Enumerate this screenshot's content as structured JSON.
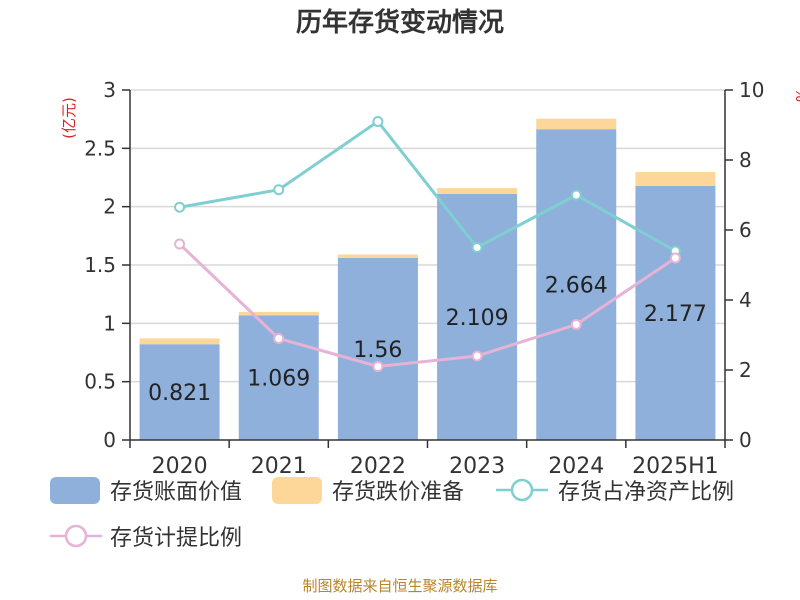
{
  "chart_data": {
    "type": "bar",
    "title": "历年存货变动情况",
    "categories": [
      "2020",
      "2021",
      "2022",
      "2023",
      "2024",
      "2025H1"
    ],
    "left_axis": {
      "unit": "(亿元)",
      "ylim": [
        0,
        3
      ],
      "ticks": [
        "0",
        "0.5",
        "1",
        "1.5",
        "2",
        "2.5",
        "3"
      ]
    },
    "right_axis": {
      "unit": "%",
      "ylim": [
        0,
        10
      ],
      "ticks": [
        "0",
        "2",
        "4",
        "6",
        "8",
        "10"
      ]
    },
    "series": [
      {
        "name": "存货账面价值",
        "kind": "bar",
        "axis": "left",
        "color": "#8eb0db",
        "values": [
          0.821,
          1.069,
          1.56,
          2.109,
          2.664,
          2.177
        ],
        "labels": [
          "0.821",
          "1.069",
          "1.56",
          "2.109",
          "2.664",
          "2.177"
        ]
      },
      {
        "name": "存货跌价准备",
        "kind": "bar-stack",
        "axis": "left",
        "color": "#fcd799",
        "values": [
          0.05,
          0.03,
          0.03,
          0.05,
          0.09,
          0.12
        ]
      },
      {
        "name": "存货占净资产比例",
        "kind": "line",
        "axis": "right",
        "color": "#7fcfd1",
        "values": [
          6.65,
          7.15,
          9.1,
          5.5,
          7.0,
          5.4
        ]
      },
      {
        "name": "存货计提比例",
        "kind": "line",
        "axis": "right",
        "color": "#e6b3d6",
        "values": [
          5.6,
          2.9,
          2.1,
          2.4,
          3.3,
          5.2
        ]
      }
    ],
    "grid": true,
    "legend_position": "bottom"
  },
  "footer": {
    "source": "制图数据来自恒生聚源数据库"
  }
}
